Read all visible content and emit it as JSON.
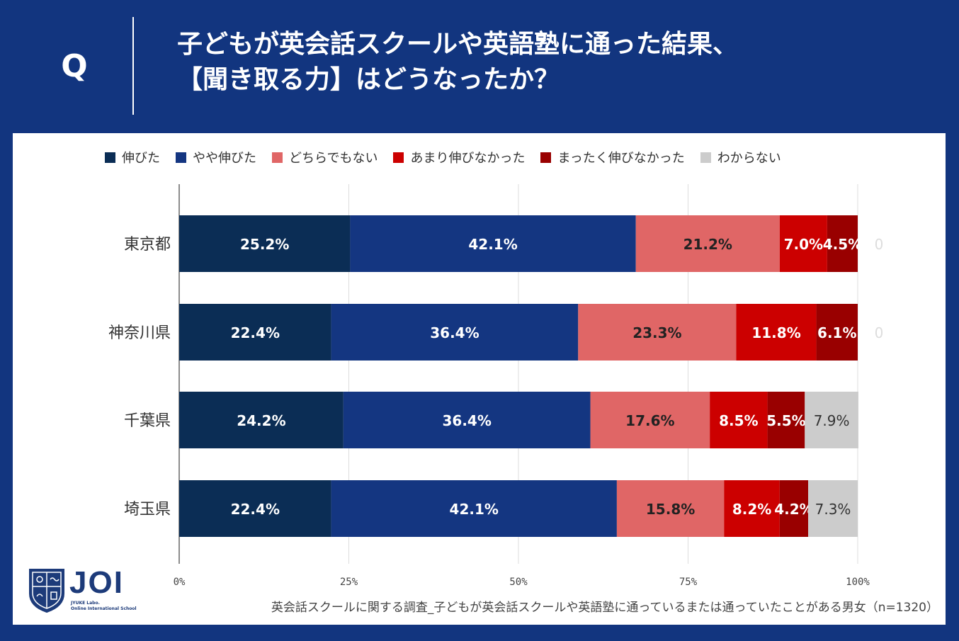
{
  "header": {
    "q_mark": "Q",
    "title_line1": "子どもが英会話スクールや英語塾に通った結果、",
    "title_line2": "【聞き取る力】はどうなったか？"
  },
  "colors": {
    "background": "#12357f",
    "series": [
      "#0b2d55",
      "#143681",
      "#e06666",
      "#cc0000",
      "#990000",
      "#cccccc"
    ]
  },
  "chart_data": {
    "type": "bar",
    "orientation": "horizontal",
    "stacked": true,
    "categories": [
      "東京都",
      "神奈川県",
      "千葉県",
      "埼玉県"
    ],
    "series": [
      {
        "name": "伸びた",
        "values": [
          25.2,
          22.4,
          24.2,
          22.4
        ],
        "labels": [
          "25.2%",
          "22.4%",
          "24.2%",
          "22.4%"
        ]
      },
      {
        "name": "やや伸びた",
        "values": [
          42.1,
          36.4,
          36.4,
          42.1
        ],
        "labels": [
          "42.1%",
          "36.4%",
          "36.4%",
          "42.1%"
        ]
      },
      {
        "name": "どちらでもない",
        "values": [
          21.2,
          23.3,
          17.6,
          15.8
        ],
        "labels": [
          "21.2%",
          "23.3%",
          "17.6%",
          "15.8%"
        ]
      },
      {
        "name": "あまり伸びなかった",
        "values": [
          7.0,
          11.8,
          8.5,
          8.2
        ],
        "labels": [
          "7.0%",
          "11.8%",
          "8.5%",
          "8.2%"
        ]
      },
      {
        "name": "まったく伸びなかった",
        "values": [
          4.5,
          6.1,
          5.5,
          4.2
        ],
        "labels": [
          "4.5%",
          "6.1%",
          "5.5%",
          "4.2%"
        ]
      },
      {
        "name": "わからない",
        "values": [
          0,
          0,
          7.9,
          7.3
        ],
        "labels": [
          "0",
          "0",
          "7.9%",
          "7.3%"
        ]
      }
    ],
    "x_ticks": [
      "0%",
      "25%",
      "50%",
      "75%",
      "100%"
    ],
    "xlim": [
      0,
      100
    ],
    "grid": true,
    "legend": "top"
  },
  "logo": {
    "text": "JOI",
    "sub1": "JYUKE Labo.",
    "sub2": "Online International School"
  },
  "footnote": "英会話スクールに関する調査_子どもが英会話スクールや英語塾に通っているまたは通っていたことがある男女（n=1320）"
}
